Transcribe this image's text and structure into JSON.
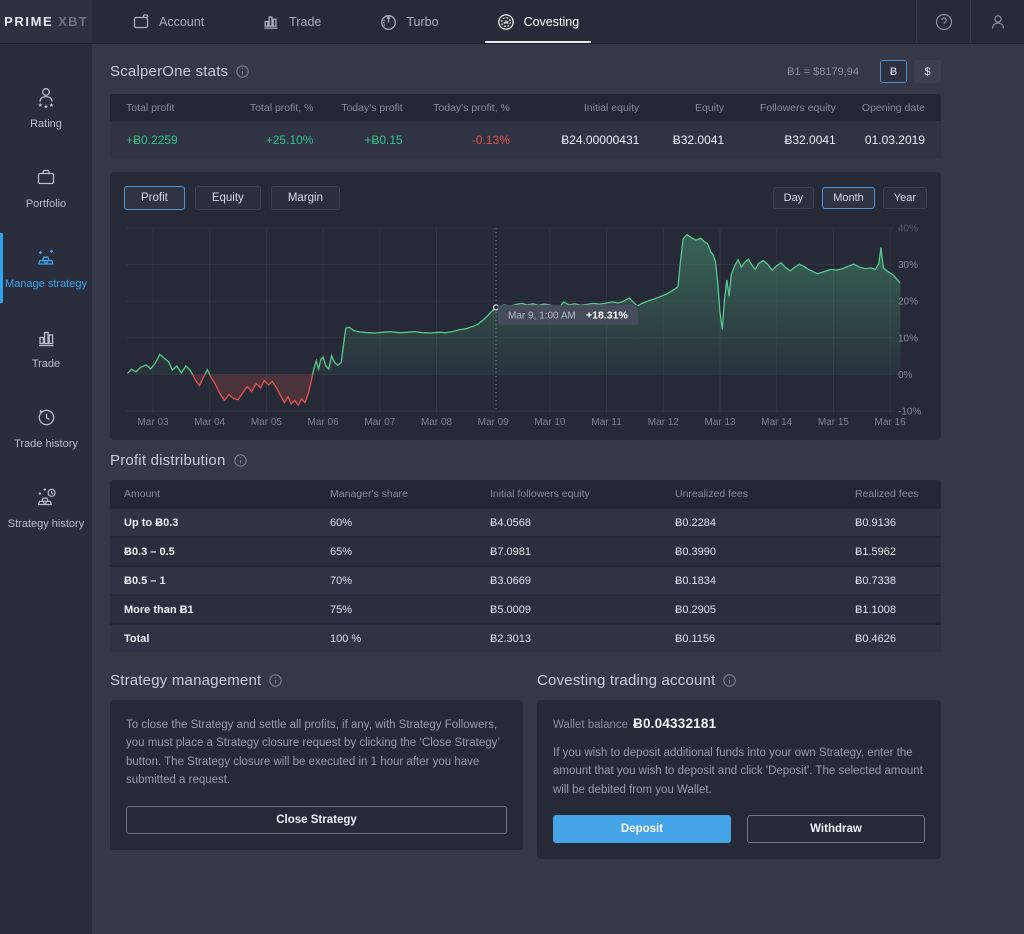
{
  "nav": {
    "logo": {
      "prime": "PRIME",
      "xbt": "XBT"
    },
    "tabs": [
      {
        "label": "Account"
      },
      {
        "label": "Trade"
      },
      {
        "label": "Turbo"
      },
      {
        "label": "Covesting",
        "active": true
      }
    ]
  },
  "sidebar": {
    "items": [
      {
        "label": "Rating"
      },
      {
        "label": "Portfolio"
      },
      {
        "label": "Manage strategy",
        "active": true
      },
      {
        "label": "Trade"
      },
      {
        "label": "Trade history"
      },
      {
        "label": "Strategy history"
      }
    ]
  },
  "stats": {
    "title": "ScalperOne stats",
    "rate": "Ƀ1 = $8179,94",
    "currency_buttons": [
      {
        "label": "Ƀ",
        "active": true
      },
      {
        "label": "$",
        "active": false
      }
    ],
    "columns": [
      "Total profit",
      "Total profit, %",
      "Today's profit",
      "Today's profit, %",
      "Initial equity",
      "Equity",
      "Followers equity",
      "Opening date"
    ],
    "values": [
      {
        "text": "+Ƀ0.2259",
        "color": "green"
      },
      {
        "text": "+25.10%",
        "color": "green"
      },
      {
        "text": "+Ƀ0.15",
        "color": "green"
      },
      {
        "text": "-0.13%",
        "color": "red"
      },
      {
        "text": "Ƀ24.00000431",
        "color": "white"
      },
      {
        "text": "Ƀ32.0041",
        "color": "white"
      },
      {
        "text": "Ƀ32.0041",
        "color": "white"
      },
      {
        "text": "01.03.2019",
        "color": "white"
      }
    ]
  },
  "chart": {
    "series_tabs": [
      {
        "label": "Profit",
        "active": true
      },
      {
        "label": "Equity",
        "active": false
      },
      {
        "label": "Margin",
        "active": false
      }
    ],
    "range_tabs": [
      {
        "label": "Day",
        "active": false
      },
      {
        "label": "Month",
        "active": true
      },
      {
        "label": "Year",
        "active": false
      }
    ]
  },
  "chart_data": {
    "type": "area",
    "title": "Profit",
    "ylabel": "%",
    "ylim": [
      -10,
      40
    ],
    "grid": true,
    "x_ticks": [
      "Mar 03",
      "Mar 04",
      "Mar 05",
      "Mar 06",
      "Mar 07",
      "Mar 08",
      "Mar 09",
      "Mar 10",
      "Mar 11",
      "Mar 12",
      "Mar 13",
      "Mar 14",
      "Mar 15",
      "Mar 16"
    ],
    "y_ticks": [
      "40%",
      "30%",
      "20%",
      "10%",
      "0%",
      "-10%"
    ],
    "colors": {
      "positive": "#57c88f",
      "negative": "#e0544d"
    },
    "tooltip": {
      "time": "Mar 9, 1:00 AM",
      "value": "+18.31%",
      "x": 6.05,
      "y": 18.31
    },
    "series": [
      {
        "name": "Profit %",
        "points": [
          [
            -0.45,
            0.3
          ],
          [
            -0.38,
            1.4
          ],
          [
            -0.3,
            0.7
          ],
          [
            -0.22,
            1.9
          ],
          [
            -0.12,
            2.6
          ],
          [
            -0.04,
            1.5
          ],
          [
            0.04,
            3.1
          ],
          [
            0.12,
            5.5
          ],
          [
            0.2,
            4.4
          ],
          [
            0.28,
            3.4
          ],
          [
            0.34,
            1.2
          ],
          [
            0.42,
            2.3
          ],
          [
            0.5,
            0.4
          ],
          [
            0.58,
            2.3
          ],
          [
            0.66,
            1.1
          ],
          [
            0.74,
            -1.3
          ],
          [
            0.82,
            -3.1
          ],
          [
            0.88,
            -1.1
          ],
          [
            0.96,
            1.3
          ],
          [
            1.02,
            -0.7
          ],
          [
            1.1,
            -2.7
          ],
          [
            1.18,
            -5.3
          ],
          [
            1.26,
            -7.1
          ],
          [
            1.34,
            -5.5
          ],
          [
            1.42,
            -6.6
          ],
          [
            1.5,
            -6.9
          ],
          [
            1.58,
            -5.1
          ],
          [
            1.66,
            -3.3
          ],
          [
            1.74,
            -4.7
          ],
          [
            1.82,
            -2.5
          ],
          [
            1.9,
            -3.7
          ],
          [
            1.96,
            -1.7
          ],
          [
            2.04,
            -2.9
          ],
          [
            2.1,
            -1.9
          ],
          [
            2.18,
            -3.7
          ],
          [
            2.26,
            -6.1
          ],
          [
            2.32,
            -7.7
          ],
          [
            2.38,
            -6.1
          ],
          [
            2.44,
            -8.1
          ],
          [
            2.5,
            -7.1
          ],
          [
            2.56,
            -8.4
          ],
          [
            2.62,
            -6.7
          ],
          [
            2.68,
            -7.7
          ],
          [
            2.74,
            -5.1
          ],
          [
            2.8,
            -1.1
          ],
          [
            2.84,
            1.6
          ],
          [
            2.88,
            3.7
          ],
          [
            2.92,
            1.5
          ],
          [
            2.96,
            4.1
          ],
          [
            3.0,
            4.7
          ],
          [
            3.05,
            2.3
          ],
          [
            3.1,
            1.5
          ],
          [
            3.15,
            5.1
          ],
          [
            3.2,
            3.3
          ],
          [
            3.26,
            2.5
          ],
          [
            3.32,
            3.3
          ],
          [
            3.36,
            8.1
          ],
          [
            3.4,
            12.6
          ],
          [
            3.46,
            12.9
          ],
          [
            3.54,
            12.0
          ],
          [
            3.64,
            11.6
          ],
          [
            3.78,
            11.4
          ],
          [
            3.92,
            11.3
          ],
          [
            4.06,
            11.5
          ],
          [
            4.2,
            11.7
          ],
          [
            4.34,
            11.4
          ],
          [
            4.48,
            11.5
          ],
          [
            4.62,
            11.7
          ],
          [
            4.76,
            11.4
          ],
          [
            4.9,
            11.3
          ],
          [
            5.04,
            11.5
          ],
          [
            5.16,
            11.4
          ],
          [
            5.28,
            11.7
          ],
          [
            5.4,
            12.2
          ],
          [
            5.52,
            12.5
          ],
          [
            5.62,
            13.0
          ],
          [
            5.72,
            13.6
          ],
          [
            5.82,
            14.8
          ],
          [
            5.9,
            16.0
          ],
          [
            5.96,
            17.0
          ],
          [
            6.0,
            17.6
          ],
          [
            6.05,
            18.31
          ],
          [
            6.12,
            18.6
          ],
          [
            6.2,
            19.0
          ],
          [
            6.3,
            18.6
          ],
          [
            6.4,
            19.1
          ],
          [
            6.5,
            19.4
          ],
          [
            6.6,
            19.0
          ],
          [
            6.7,
            19.3
          ],
          [
            6.8,
            18.9
          ],
          [
            6.9,
            19.2
          ],
          [
            7.0,
            19.0
          ],
          [
            7.08,
            18.5
          ],
          [
            7.16,
            18.2
          ],
          [
            7.24,
            19.8
          ],
          [
            7.34,
            19.0
          ],
          [
            7.44,
            19.3
          ],
          [
            7.54,
            18.9
          ],
          [
            7.64,
            19.1
          ],
          [
            7.76,
            19.4
          ],
          [
            7.88,
            19.2
          ],
          [
            8.0,
            19.5
          ],
          [
            8.1,
            19.8
          ],
          [
            8.2,
            19.5
          ],
          [
            8.3,
            20.0
          ],
          [
            8.4,
            20.9
          ],
          [
            8.48,
            19.6
          ],
          [
            8.54,
            18.7
          ],
          [
            8.64,
            19.5
          ],
          [
            8.74,
            20.1
          ],
          [
            8.84,
            20.6
          ],
          [
            8.94,
            21.2
          ],
          [
            9.0,
            21.6
          ],
          [
            9.06,
            22.0
          ],
          [
            9.12,
            22.5
          ],
          [
            9.2,
            23.3
          ],
          [
            9.26,
            24.0
          ],
          [
            9.3,
            30.5
          ],
          [
            9.35,
            37.0
          ],
          [
            9.42,
            38.2
          ],
          [
            9.5,
            37.3
          ],
          [
            9.58,
            36.7
          ],
          [
            9.66,
            37.2
          ],
          [
            9.72,
            36.3
          ],
          [
            9.78,
            35.7
          ],
          [
            9.84,
            33.4
          ],
          [
            9.88,
            32.6
          ],
          [
            9.92,
            30.8
          ],
          [
            9.96,
            25.2
          ],
          [
            10.0,
            16.8
          ],
          [
            10.04,
            12.3
          ],
          [
            10.08,
            20.5
          ],
          [
            10.12,
            25.8
          ],
          [
            10.16,
            21.4
          ],
          [
            10.2,
            27.3
          ],
          [
            10.26,
            29.7
          ],
          [
            10.32,
            31.3
          ],
          [
            10.38,
            29.3
          ],
          [
            10.44,
            30.7
          ],
          [
            10.5,
            31.5
          ],
          [
            10.56,
            29.9
          ],
          [
            10.62,
            28.7
          ],
          [
            10.68,
            30.3
          ],
          [
            10.76,
            31.1
          ],
          [
            10.84,
            30.1
          ],
          [
            10.92,
            28.5
          ],
          [
            11.0,
            29.7
          ],
          [
            11.08,
            30.5
          ],
          [
            11.16,
            29.1
          ],
          [
            11.24,
            28.3
          ],
          [
            11.32,
            29.3
          ],
          [
            11.4,
            30.1
          ],
          [
            11.48,
            29.5
          ],
          [
            11.56,
            28.7
          ],
          [
            11.64,
            28.1
          ],
          [
            11.72,
            27.5
          ],
          [
            11.8,
            27.9
          ],
          [
            11.88,
            28.3
          ],
          [
            11.96,
            28.7
          ],
          [
            12.06,
            28.5
          ],
          [
            12.16,
            28.9
          ],
          [
            12.26,
            29.5
          ],
          [
            12.36,
            30.1
          ],
          [
            12.46,
            29.3
          ],
          [
            12.56,
            28.9
          ],
          [
            12.66,
            29.1
          ],
          [
            12.74,
            28.7
          ],
          [
            12.8,
            30.3
          ],
          [
            12.84,
            34.7
          ],
          [
            12.88,
            29.1
          ],
          [
            12.94,
            28.3
          ],
          [
            13.0,
            27.7
          ],
          [
            13.06,
            27.1
          ],
          [
            13.12,
            26.0
          ],
          [
            13.18,
            24.9
          ]
        ]
      }
    ]
  },
  "distribution": {
    "title": "Profit distribution",
    "columns": [
      "Amount",
      "Manager's share",
      "Initial followers equity",
      "Unrealized fees",
      "Realized fees"
    ],
    "rows": [
      [
        "Up to Ƀ0.3",
        "60%",
        "Ƀ4.0568",
        "Ƀ0.2284",
        "Ƀ0.9136"
      ],
      [
        "Ƀ0.3 – 0.5",
        "65%",
        "Ƀ7.0981",
        "Ƀ0.3990",
        "Ƀ1.5962"
      ],
      [
        "Ƀ0.5 – 1",
        "70%",
        "Ƀ3.0669",
        "Ƀ0.1834",
        "Ƀ0.7338"
      ],
      [
        "More than Ƀ1",
        "75%",
        "Ƀ5.0009",
        "Ƀ0.2905",
        "Ƀ1.1008"
      ],
      [
        "Total",
        "100 %",
        "Ƀ2.3013",
        "Ƀ0.1156",
        "Ƀ0.4626"
      ]
    ]
  },
  "management": {
    "title": "Strategy management",
    "body": "To close the Strategy and settle all profits, if any, with Strategy Followers, you must place a Strategy closure request by clicking the ‘Close Strategy’ button. The Strategy closure will be executed in 1 hour after you have submitted a request.",
    "button": "Close Strategy"
  },
  "account": {
    "title": "Covesting trading account",
    "wallet_label": "Wallet balance",
    "wallet_value": "Ƀ0.04332181",
    "body": "If you wish to deposit additional funds into your own Strategy, enter the amount that you wish to deposit and click 'Deposit'. The selected amount will be debited from you Wallet.",
    "deposit": "Deposit",
    "withdraw": "Withdraw"
  }
}
